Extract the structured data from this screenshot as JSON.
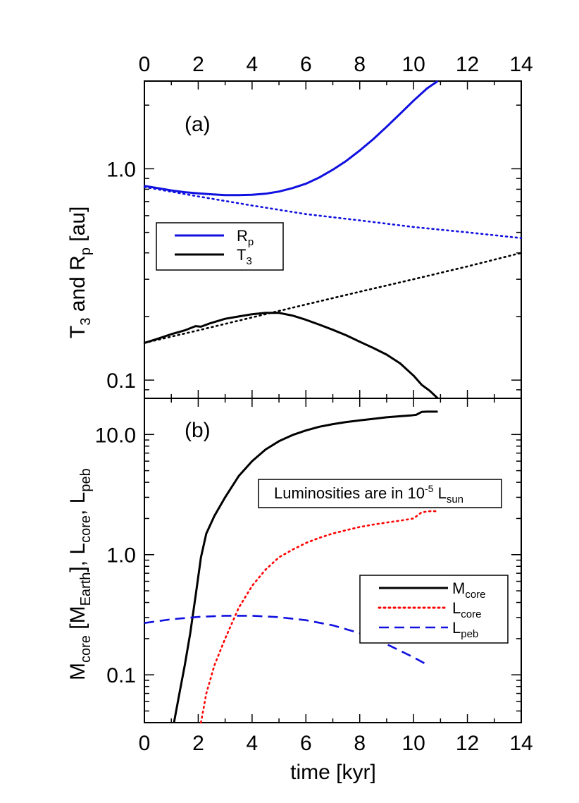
{
  "chart_data": [
    {
      "type": "line",
      "panel_label": "(a)",
      "ylabel": "T_3 and R_p [au]",
      "ylabel_parts": {
        "a": "T",
        "a_sub": "3",
        "mid": " and R",
        "b_sub": "p",
        "tail": " [au]"
      },
      "yscale": "log",
      "xlim": [
        0,
        14
      ],
      "ylim": [
        0.082,
        2.6
      ],
      "x_ticks": [
        "0",
        "2",
        "4",
        "6",
        "8",
        "10",
        "12",
        "14"
      ],
      "y_tick_labels": [
        {
          "value": 0.1,
          "label": "0.1"
        },
        {
          "value": 1.0,
          "label": "1.0"
        }
      ],
      "legend": {
        "placement": "middle-left",
        "entries": [
          {
            "name": "R",
            "sub": "p",
            "color": "#1010e0",
            "style": "solid"
          },
          {
            "name": "T",
            "sub": "3",
            "color": "#000000",
            "style": "solid"
          }
        ]
      },
      "series": [
        {
          "key": "Rp",
          "color": "#1010e0",
          "style": "solid",
          "x": [
            0,
            0.5,
            1,
            1.5,
            2,
            2.5,
            3,
            3.5,
            4,
            4.5,
            5,
            5.5,
            6,
            6.5,
            7,
            7.5,
            8,
            8.5,
            9,
            9.5,
            10,
            10.5,
            10.9
          ],
          "y": [
            0.83,
            0.81,
            0.79,
            0.775,
            0.765,
            0.757,
            0.75,
            0.75,
            0.753,
            0.762,
            0.78,
            0.81,
            0.85,
            0.91,
            0.99,
            1.09,
            1.22,
            1.38,
            1.58,
            1.82,
            2.1,
            2.4,
            2.6
          ]
        },
        {
          "key": "Rp_ref",
          "color": "#1010e0",
          "style": "dotted",
          "x": [
            0,
            2,
            4,
            6,
            8,
            10,
            12,
            14
          ],
          "y": [
            0.82,
            0.74,
            0.67,
            0.61,
            0.57,
            0.53,
            0.5,
            0.47
          ]
        },
        {
          "key": "T3",
          "color": "#000000",
          "style": "solid",
          "x": [
            0,
            0.5,
            1,
            1.5,
            1.9,
            2.1,
            2.4,
            3,
            3.5,
            4,
            4.5,
            5,
            5.5,
            6,
            6.5,
            7,
            7.5,
            8,
            8.5,
            9,
            9.5,
            10,
            10.3,
            10.6,
            10.9
          ],
          "y": [
            0.15,
            0.157,
            0.165,
            0.172,
            0.18,
            0.179,
            0.185,
            0.195,
            0.2,
            0.205,
            0.208,
            0.208,
            0.202,
            0.193,
            0.183,
            0.173,
            0.163,
            0.152,
            0.142,
            0.132,
            0.12,
            0.105,
            0.095,
            0.089,
            0.082
          ]
        },
        {
          "key": "T3_ref",
          "color": "#000000",
          "style": "dotted",
          "x": [
            0,
            2,
            4,
            6,
            8,
            10,
            12,
            14
          ],
          "y": [
            0.15,
            0.172,
            0.198,
            0.228,
            0.262,
            0.3,
            0.345,
            0.4
          ]
        }
      ]
    },
    {
      "type": "line",
      "panel_label": "(b)",
      "xlabel": "time [kyr]",
      "ylabel_parts": {
        "a": "M",
        "a_sub": "core",
        "b": " [M",
        "b_sub": "Earth",
        "c": "], L",
        "c_sub": "core",
        "d": ", L",
        "d_sub": "peb"
      },
      "yscale": "log",
      "xlim": [
        0,
        14
      ],
      "ylim": [
        0.04,
        20
      ],
      "x_ticks": [
        "0",
        "2",
        "4",
        "6",
        "8",
        "10",
        "12",
        "14"
      ],
      "y_tick_labels": [
        {
          "value": 0.1,
          "label": "0.1"
        },
        {
          "value": 1.0,
          "label": "1.0"
        },
        {
          "value": 10.0,
          "label": "10.0"
        }
      ],
      "annotation": {
        "text": "Luminosities are in 10",
        "sup": "-5",
        "tail": " L",
        "sub": "sun"
      },
      "legend": {
        "placement": "bottom-right",
        "entries": [
          {
            "name": "M",
            "sub": "core",
            "color": "#000000",
            "style": "solid"
          },
          {
            "name": "L",
            "sub": "core",
            "color": "#ff0000",
            "style": "dotted"
          },
          {
            "name": "L",
            "sub": "peb",
            "color": "#1010e0",
            "style": "dashed"
          }
        ]
      },
      "series": [
        {
          "key": "Mcore",
          "color": "#000000",
          "style": "solid",
          "x": [
            1.1,
            1.3,
            1.5,
            1.7,
            1.9,
            2.1,
            2.3,
            2.6,
            3,
            3.5,
            4,
            4.5,
            5,
            5.5,
            6,
            6.5,
            7,
            7.5,
            8,
            8.5,
            9,
            9.5,
            9.9,
            10.1,
            10.3,
            10.5,
            10.7,
            10.9
          ],
          "y": [
            0.04,
            0.07,
            0.12,
            0.22,
            0.45,
            0.95,
            1.5,
            2.1,
            3.0,
            4.5,
            6.0,
            7.5,
            8.8,
            9.9,
            10.8,
            11.6,
            12.2,
            12.7,
            13.1,
            13.5,
            13.9,
            14.2,
            14.4,
            14.6,
            15.4,
            15.5,
            15.5,
            15.5
          ]
        },
        {
          "key": "Lcore",
          "color": "#ff0000",
          "style": "dotted",
          "x": [
            2.1,
            2.3,
            2.6,
            3,
            3.5,
            4,
            4.5,
            5,
            5.5,
            6,
            6.5,
            7,
            7.5,
            8,
            8.5,
            9,
            9.5,
            10,
            10.3,
            10.6,
            10.9
          ],
          "y": [
            0.04,
            0.07,
            0.12,
            0.2,
            0.36,
            0.55,
            0.75,
            0.95,
            1.1,
            1.25,
            1.38,
            1.5,
            1.6,
            1.7,
            1.78,
            1.85,
            1.92,
            2.0,
            2.25,
            2.3,
            2.3
          ]
        },
        {
          "key": "Lpeb",
          "color": "#1010e0",
          "style": "dashed",
          "x": [
            0,
            1,
            2,
            3,
            4,
            5,
            6,
            7,
            8,
            9,
            10,
            10.4
          ],
          "y": [
            0.27,
            0.29,
            0.303,
            0.31,
            0.31,
            0.302,
            0.285,
            0.258,
            0.222,
            0.18,
            0.14,
            0.125
          ]
        }
      ]
    }
  ]
}
